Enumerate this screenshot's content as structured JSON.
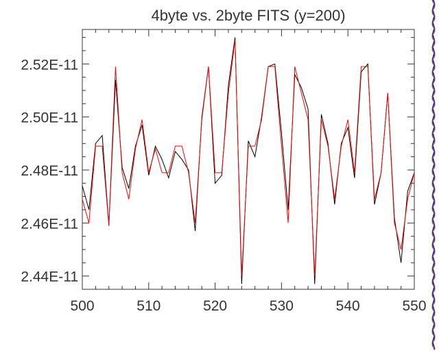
{
  "chart_data": {
    "type": "line",
    "title": "4byte vs. 2byte FITS (y=200)",
    "xlabel": "",
    "ylabel": "",
    "xlim": [
      500,
      550
    ],
    "ylim": [
      2.435e-11,
      2.533e-11
    ],
    "x_ticks": [
      500,
      510,
      520,
      530,
      540,
      550
    ],
    "x_tick_labels": [
      "500",
      "510",
      "520",
      "530",
      "540",
      "550"
    ],
    "y_ticks": [
      2.44e-11,
      2.46e-11,
      2.48e-11,
      2.5e-11,
      2.52e-11
    ],
    "y_tick_labels": [
      "2.44E-11",
      "2.46E-11",
      "2.48E-11",
      "2.50E-11",
      "2.52E-11"
    ],
    "grid": false,
    "legend": "none",
    "x": [
      500,
      501,
      502,
      503,
      504,
      505,
      506,
      507,
      508,
      509,
      510,
      511,
      512,
      513,
      514,
      515,
      516,
      517,
      518,
      519,
      520,
      521,
      522,
      523,
      524,
      525,
      526,
      527,
      528,
      529,
      530,
      531,
      532,
      533,
      534,
      535,
      536,
      537,
      538,
      539,
      540,
      541,
      542,
      543,
      544,
      545,
      546,
      547,
      548,
      549,
      550
    ],
    "series": [
      {
        "color": "#000000",
        "values": [
          2.474e-11,
          2.465e-11,
          2.49e-11,
          2.493e-11,
          2.459e-11,
          2.514e-11,
          2.481e-11,
          2.473e-11,
          2.489e-11,
          2.497e-11,
          2.478e-11,
          2.489e-11,
          2.484e-11,
          2.477e-11,
          2.487e-11,
          2.484e-11,
          2.48e-11,
          2.457e-11,
          2.5e-11,
          2.519e-11,
          2.475e-11,
          2.478e-11,
          2.512e-11,
          2.53e-11,
          2.437e-11,
          2.491e-11,
          2.485e-11,
          2.5e-11,
          2.519e-11,
          2.52e-11,
          2.494e-11,
          2.465e-11,
          2.516e-11,
          2.511e-11,
          2.503e-11,
          2.437e-11,
          2.501e-11,
          2.49e-11,
          2.467e-11,
          2.49e-11,
          2.496e-11,
          2.477e-11,
          2.517e-11,
          2.52e-11,
          2.467e-11,
          2.479e-11,
          2.509e-11,
          2.462e-11,
          2.445e-11,
          2.472e-11,
          2.479e-11
        ]
      },
      {
        "color": "#ff0000",
        "values": [
          2.469e-11,
          2.46e-11,
          2.489e-11,
          2.489e-11,
          2.459e-11,
          2.519e-11,
          2.479e-11,
          2.469e-11,
          2.488e-11,
          2.499e-11,
          2.479e-11,
          2.488e-11,
          2.479e-11,
          2.479e-11,
          2.489e-11,
          2.489e-11,
          2.479e-11,
          2.46e-11,
          2.499e-11,
          2.519e-11,
          2.479e-11,
          2.479e-11,
          2.509e-11,
          2.529e-11,
          2.44e-11,
          2.489e-11,
          2.489e-11,
          2.499e-11,
          2.519e-11,
          2.519e-11,
          2.489e-11,
          2.46e-11,
          2.519e-11,
          2.509e-11,
          2.499e-11,
          2.44e-11,
          2.499e-11,
          2.489e-11,
          2.469e-11,
          2.489e-11,
          2.499e-11,
          2.479e-11,
          2.519e-11,
          2.519e-11,
          2.469e-11,
          2.479e-11,
          2.509e-11,
          2.46e-11,
          2.45e-11,
          2.469e-11,
          2.479e-11
        ]
      }
    ],
    "edge_strip_colors": [
      "#000000",
      "#ff0000",
      "#00aa00",
      "#0000ff",
      "#00aaaa",
      "#cc00cc"
    ]
  }
}
